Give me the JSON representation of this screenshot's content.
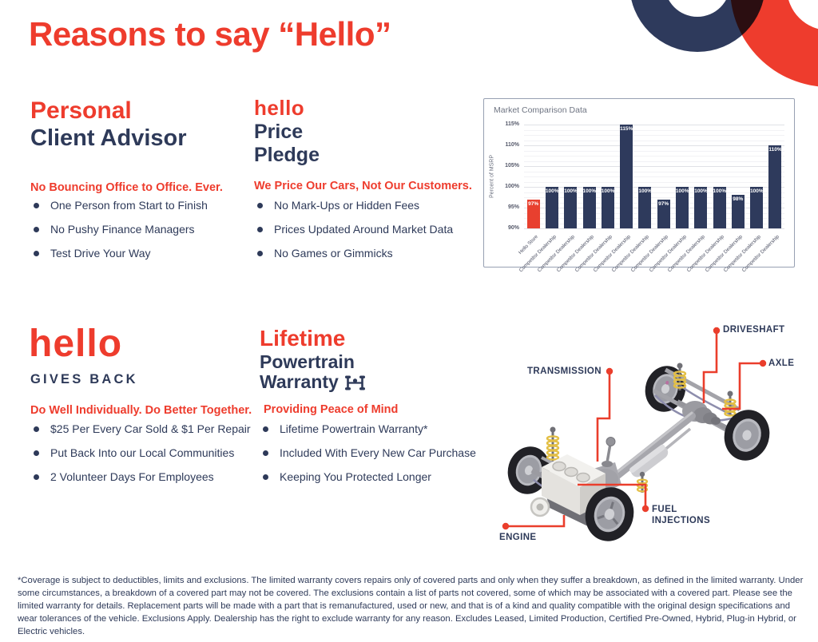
{
  "page": {
    "title": "Reasons to say “Hello”"
  },
  "colors": {
    "red": "#EE3C2D",
    "navy": "#2E3A59",
    "chart_bar_navy": "#2E3A5C",
    "chart_bar_red": "#E8402F"
  },
  "sections": {
    "advisor": {
      "title_line1": "Personal",
      "title_line2": "Client Advisor",
      "subhead": "No Bouncing Office to Office. Ever.",
      "bullets": [
        "One Person from Start to Finish",
        "No Pushy Finance Managers",
        "Test Drive Your Way"
      ]
    },
    "price_pledge": {
      "logo": "hello",
      "title_line1": "Price",
      "title_line2": "Pledge",
      "subhead": "We Price Our Cars, Not Our Customers.",
      "bullets": [
        "No Mark-Ups or Hidden Fees",
        "Prices Updated Around Market Data",
        "No Games or Gimmicks"
      ]
    },
    "gives_back": {
      "logo": "hello",
      "title": "GIVES BACK",
      "subhead": "Do Well Individually. Do Better Together.",
      "bullets": [
        "$25 Per Every Car Sold & $1 Per Repair",
        "Put Back Into our Local Communities",
        "2 Volunteer Days For Employees"
      ]
    },
    "warranty": {
      "title_line1": "Lifetime",
      "title_line2": "Powertrain",
      "title_line3": "Warranty",
      "subhead": "Providing Peace of Mind",
      "bullets": [
        "Lifetime Powertrain Warranty*",
        "Included With Every New Car Purchase",
        "Keeping You Protected Longer"
      ]
    }
  },
  "chart_data": {
    "type": "bar",
    "title": "Market Comparison Data",
    "xlabel": "",
    "ylabel": "Percent of MSRP",
    "ylim": [
      90,
      115
    ],
    "yticks": [
      90,
      95,
      100,
      105,
      110,
      115
    ],
    "ytick_suffix": "%",
    "grid": true,
    "legend": false,
    "categories": [
      "Hello Store",
      "Competitor Dealership",
      "Competitor Dealership",
      "Competitor Dealership",
      "Competitor Dealership",
      "Competitor Dealership",
      "Competitor Dealership",
      "Competitor Dealership",
      "Competitor Dealership",
      "Competitor Dealership",
      "Competitor Dealership",
      "Competitor Dealership",
      "Competitor Dealership",
      "Competitor Dealership"
    ],
    "values": [
      97,
      100,
      100,
      100,
      100,
      115,
      100,
      97,
      100,
      100,
      100,
      98,
      100,
      110
    ],
    "highlight_index": 0
  },
  "diagram": {
    "labels": {
      "driveshaft": "DRIVESHAFT",
      "axle": "AXLE",
      "transmission": "TRANSMISSION",
      "fuel_injections": "FUEL INJECTIONS",
      "engine": "ENGINE"
    }
  },
  "disclaimer": "*Coverage is subject to deductibles, limits and exclusions. The limited warranty covers repairs only of covered parts and only when they suffer a breakdown, as defined in the limited warranty. Under some circumstances, a breakdown of a covered part may not be covered. The exclusions contain a list of parts not covered, some of which may be associated with a covered part. Please see the limited warranty for details. Replacement parts will be made with a part that is remanufactured, used or new, and that is of a kind and quality compatible with the original design specifications and wear tolerances of the vehicle. Exclusions Apply. Dealership has the right to exclude warranty for any reason. Excludes Leased, Limited Production, Certified Pre-Owned, Hybrid, Plug-in Hybrid, or Electric vehicles."
}
